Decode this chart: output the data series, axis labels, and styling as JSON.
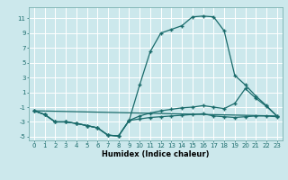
{
  "xlabel": "Humidex (Indice chaleur)",
  "bg_color": "#cce8ec",
  "line_color": "#1a6b6b",
  "grid_color": "#ffffff",
  "xlim": [
    -0.5,
    23.5
  ],
  "ylim": [
    -5.5,
    12.5
  ],
  "xticks": [
    0,
    1,
    2,
    3,
    4,
    5,
    6,
    7,
    8,
    9,
    10,
    11,
    12,
    13,
    14,
    15,
    16,
    17,
    18,
    19,
    20,
    21,
    22,
    23
  ],
  "yticks": [
    -5,
    -3,
    -1,
    1,
    3,
    5,
    7,
    9,
    11
  ],
  "line1_x": [
    0,
    1,
    2,
    3,
    4,
    5,
    6,
    7,
    8,
    9,
    10,
    11,
    12,
    13,
    14,
    15,
    16,
    17,
    18,
    19,
    20,
    21,
    22,
    23
  ],
  "line1_y": [
    -1.5,
    -2.0,
    -3.0,
    -3.0,
    -3.2,
    -3.5,
    -3.8,
    -4.8,
    -4.9,
    -2.8,
    2.0,
    6.5,
    9.0,
    9.5,
    10.0,
    11.2,
    11.3,
    11.2,
    9.3,
    3.3,
    2.0,
    0.5,
    -0.8,
    -2.2
  ],
  "line2_x": [
    0,
    1,
    2,
    3,
    4,
    5,
    6,
    7,
    8,
    9,
    10,
    11,
    12,
    13,
    14,
    15,
    16,
    17,
    18,
    19,
    20,
    21,
    22,
    23
  ],
  "line2_y": [
    -1.5,
    -2.0,
    -3.0,
    -3.0,
    -3.2,
    -3.5,
    -3.8,
    -4.8,
    -4.9,
    -2.8,
    -2.6,
    -2.4,
    -2.3,
    -2.2,
    -2.1,
    -2.0,
    -1.9,
    -2.2,
    -2.3,
    -2.4,
    -2.3,
    -2.2,
    -2.2,
    -2.3
  ],
  "line3_x": [
    0,
    1,
    2,
    3,
    4,
    5,
    6,
    7,
    8,
    9,
    10,
    11,
    12,
    13,
    14,
    15,
    16,
    17,
    18,
    19,
    20,
    21,
    22,
    23
  ],
  "line3_y": [
    -1.5,
    -2.0,
    -3.0,
    -3.0,
    -3.2,
    -3.5,
    -3.8,
    -4.8,
    -4.9,
    -2.8,
    -2.2,
    -1.8,
    -1.5,
    -1.3,
    -1.1,
    -1.0,
    -0.8,
    -1.0,
    -1.2,
    -0.5,
    1.5,
    0.2,
    -0.9,
    -2.2
  ],
  "line4_x": [
    0,
    23
  ],
  "line4_y": [
    -1.5,
    -2.2
  ],
  "marker": "+",
  "markersize": 3.5,
  "linewidth": 0.9,
  "tick_fontsize": 5.0,
  "xlabel_fontsize": 6.0
}
